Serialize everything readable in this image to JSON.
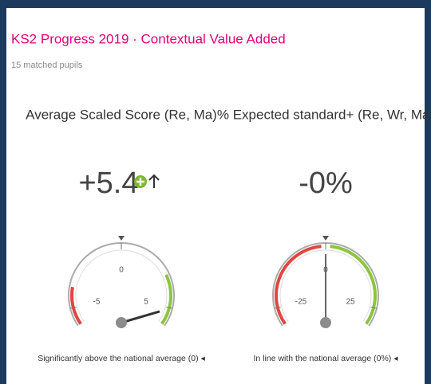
{
  "header": {
    "title": "KS2 Progress 2019 · Contextual Value Added",
    "subtitle": "15 matched pupils"
  },
  "gauges": [
    {
      "heading": "Average Scaled Score (Re, Ma)",
      "value_label": "+5.4",
      "value": 5.4,
      "range": [
        -6,
        6
      ],
      "ticks": [
        -5,
        0,
        5
      ],
      "caption": "Significantly above the national average (0) ◂"
    },
    {
      "heading": "% Expected standard+ (Re, Wr, Ma)",
      "value_label": "-0%",
      "value": 0,
      "range": [
        -30,
        30
      ],
      "ticks": [
        -25,
        0,
        25
      ],
      "caption": "In line with the national average (0%) ◂"
    }
  ]
}
